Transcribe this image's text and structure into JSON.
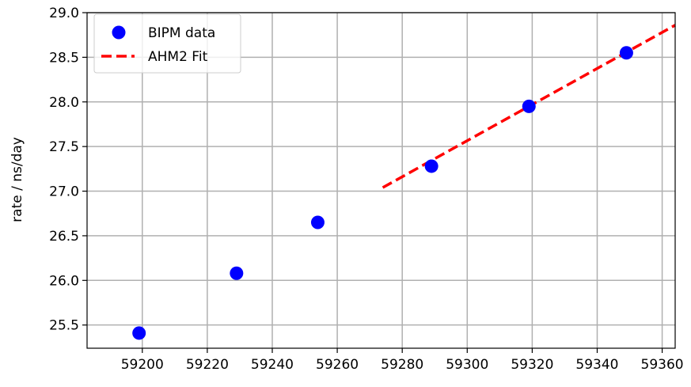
{
  "chart_data": {
    "type": "scatter",
    "title": "",
    "xlabel": "",
    "ylabel": "rate / ns/day",
    "xlim": [
      59183,
      59364
    ],
    "ylim": [
      25.24,
      29.0
    ],
    "xticks": [
      59200,
      59220,
      59240,
      59260,
      59280,
      59300,
      59320,
      59340,
      59360
    ],
    "yticks": [
      25.5,
      26.0,
      26.5,
      27.0,
      27.5,
      28.0,
      28.5,
      29.0
    ],
    "xtick_labels": [
      "59200",
      "59220",
      "59240",
      "59260",
      "59280",
      "59300",
      "59320",
      "59340",
      "59360"
    ],
    "ytick_labels": [
      "25.5",
      "26.0",
      "26.5",
      "27.0",
      "27.5",
      "28.0",
      "28.5",
      "29.0"
    ],
    "grid": true,
    "legend": "top-left",
    "series": [
      {
        "name": "BIPM data",
        "kind": "scatter",
        "color": "#0000ff",
        "x": [
          59199,
          59229,
          59254,
          59289,
          59319,
          59349
        ],
        "y": [
          25.41,
          26.08,
          26.65,
          27.28,
          27.95,
          28.55
        ]
      },
      {
        "name": "AHM2 Fit",
        "kind": "line",
        "style": "dashed",
        "color": "#ff0000",
        "x": [
          59274,
          59364
        ],
        "y": [
          27.04,
          28.86
        ]
      }
    ]
  }
}
